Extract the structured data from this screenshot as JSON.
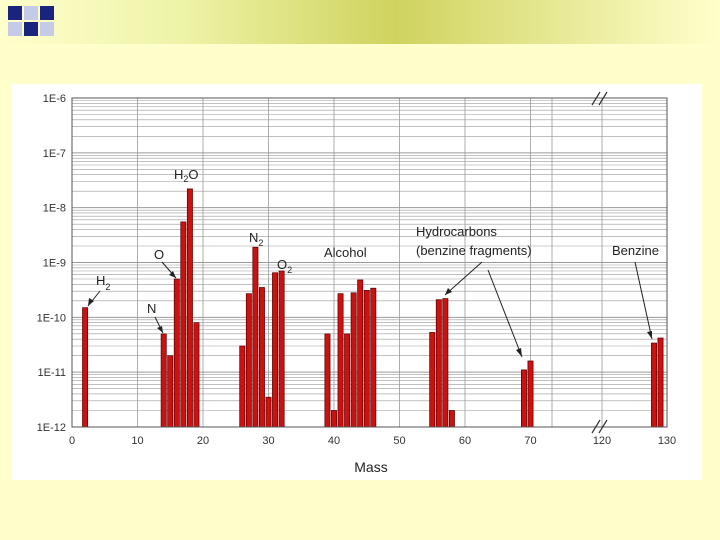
{
  "colors": {
    "background": "#ffffcc",
    "bar_fill": "#cc1111",
    "bar_stroke": "#550000",
    "grid": "#9a9a9a",
    "square_dark": "#1a237e",
    "square_light": "#c5cae9"
  },
  "chart_data": {
    "type": "bar",
    "xlabel": "Mass",
    "ylabel": "",
    "x_axis_break": "after 70, resumes at 120",
    "x_ticks": [
      "0",
      "10",
      "20",
      "30",
      "40",
      "50",
      "60",
      "70",
      "",
      "120",
      "130"
    ],
    "y_scale": "log",
    "ylim": [
      1e-12,
      1e-06
    ],
    "y_ticks": [
      "1E-6",
      "1E-7",
      "1E-8",
      "1E-9",
      "1E-10",
      "1E-11",
      "1E-12"
    ],
    "grid": true,
    "bars": [
      {
        "x": 2,
        "y": 1.5e-10
      },
      {
        "x": 14,
        "y": 5e-11
      },
      {
        "x": 15,
        "y": 2e-11
      },
      {
        "x": 16,
        "y": 5e-10
      },
      {
        "x": 17,
        "y": 5.5e-09
      },
      {
        "x": 18,
        "y": 2.2e-08
      },
      {
        "x": 19,
        "y": 8e-11
      },
      {
        "x": 26,
        "y": 3e-11
      },
      {
        "x": 27,
        "y": 2.7e-10
      },
      {
        "x": 28,
        "y": 1.9e-09
      },
      {
        "x": 29,
        "y": 3.5e-10
      },
      {
        "x": 30,
        "y": 3.5e-12
      },
      {
        "x": 31,
        "y": 6.5e-10
      },
      {
        "x": 32,
        "y": 7e-10
      },
      {
        "x": 39,
        "y": 5e-11
      },
      {
        "x": 40,
        "y": 2e-12
      },
      {
        "x": 41,
        "y": 2.7e-10
      },
      {
        "x": 42,
        "y": 5e-11
      },
      {
        "x": 43,
        "y": 2.8e-10
      },
      {
        "x": 44,
        "y": 4.8e-10
      },
      {
        "x": 45,
        "y": 3.1e-10
      },
      {
        "x": 46,
        "y": 3.4e-10
      },
      {
        "x": 55,
        "y": 5.3e-11
      },
      {
        "x": 56,
        "y": 2.1e-10
      },
      {
        "x": 57,
        "y": 2.2e-10
      },
      {
        "x": 58,
        "y": 2e-12
      },
      {
        "x": 69,
        "y": 1.1e-11
      },
      {
        "x": 70,
        "y": 1.6e-11
      },
      {
        "x": 128,
        "y": 3.4e-11
      },
      {
        "x": 129,
        "y": 4.2e-11
      }
    ],
    "annotations": {
      "h2": {
        "main": "H",
        "sub": "2"
      },
      "h2o": {
        "main": "H",
        "sub": "2",
        "tail": "O"
      },
      "o": "O",
      "n": "N",
      "n2": {
        "main": "N",
        "sub": "2"
      },
      "o2": {
        "main": "O",
        "sub": "2"
      },
      "alcohol": "Alcohol",
      "hydrocarbons_line1": "Hydrocarbons",
      "hydrocarbons_line2": "(benzine fragments)",
      "benzine": "Benzine"
    }
  }
}
